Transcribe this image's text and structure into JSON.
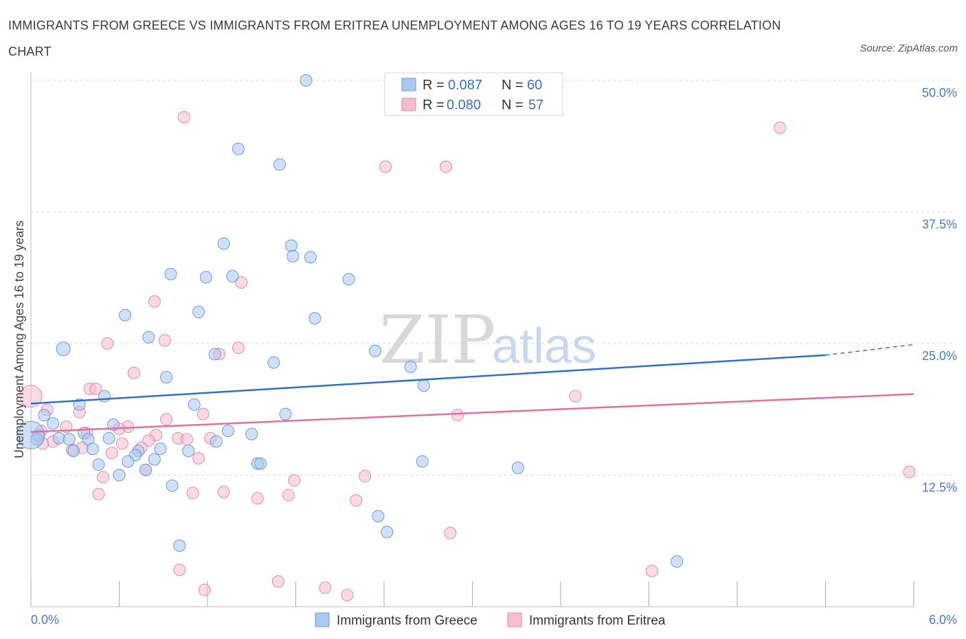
{
  "title": "IMMIGRANTS FROM GREECE VS IMMIGRANTS FROM ERITREA UNEMPLOYMENT AMONG AGES 16 TO 19 YEARS CORRELATION CHART",
  "source": "Source: ZipAtlas.com",
  "watermark": {
    "zip": "ZIP",
    "atlas": "atlas"
  },
  "legend_top": {
    "rows": [
      {
        "r_label": "R =",
        "r_value": "0.087",
        "n_label": "N =",
        "n_value": "60"
      },
      {
        "r_label": "R =",
        "r_value": "0.080",
        "n_label": "N =",
        "n_value": "57"
      }
    ]
  },
  "colors": {
    "greece_fill": "#aac8f0",
    "greece_stroke": "#6a9ad8",
    "greece_line": "#2f6fc8",
    "eritrea_fill": "#f6bcd0",
    "eritrea_stroke": "#e58aa8",
    "eritrea_line": "#e0709a",
    "tick_text": "#4a78c2",
    "grid": "#dddddd"
  },
  "chart_data": {
    "type": "scatter",
    "title": "IMMIGRANTS FROM GREECE VS IMMIGRANTS FROM ERITREA UNEMPLOYMENT AMONG AGES 16 TO 19 YEARS CORRELATION CHART",
    "xlabel": "",
    "ylabel": "Unemployment Among Ages 16 to 19 years",
    "xlim": [
      0,
      6
    ],
    "ylim": [
      0,
      50
    ],
    "x_tick_labels": [
      "0.0%",
      "6.0%"
    ],
    "y_tick_labels": [
      "12.5%",
      "25.0%",
      "37.5%",
      "50.0%"
    ],
    "y_ticks": [
      12.5,
      25.0,
      37.5,
      50.0
    ],
    "grid": true,
    "legend_position": "top-center",
    "series": [
      {
        "name": "Immigrants from Greece",
        "r": 0.087,
        "n": 60,
        "trend": {
          "x0": 0,
          "y0": 19.3,
          "x1": 5.4,
          "y1": 23.9,
          "dashed_to_x": 6,
          "dashed_to_y": 24.9
        },
        "points": [
          {
            "x": 1.87,
            "y": 50.0
          },
          {
            "x": 1.41,
            "y": 43.5
          },
          {
            "x": 1.69,
            "y": 42.0
          },
          {
            "x": 1.31,
            "y": 34.5
          },
          {
            "x": 1.77,
            "y": 34.3
          },
          {
            "x": 1.78,
            "y": 33.3
          },
          {
            "x": 1.9,
            "y": 33.2
          },
          {
            "x": 0.95,
            "y": 31.6
          },
          {
            "x": 1.19,
            "y": 31.3
          },
          {
            "x": 1.37,
            "y": 31.4
          },
          {
            "x": 2.16,
            "y": 31.1
          },
          {
            "x": 0.64,
            "y": 27.7
          },
          {
            "x": 1.14,
            "y": 28.0
          },
          {
            "x": 1.93,
            "y": 27.4
          },
          {
            "x": 0.8,
            "y": 25.6
          },
          {
            "x": 0.22,
            "y": 24.5
          },
          {
            "x": 1.25,
            "y": 24.0
          },
          {
            "x": 2.34,
            "y": 24.3
          },
          {
            "x": 1.65,
            "y": 23.2
          },
          {
            "x": 2.58,
            "y": 22.8
          },
          {
            "x": 0.92,
            "y": 21.8
          },
          {
            "x": 2.67,
            "y": 21.0
          },
          {
            "x": 0.5,
            "y": 20.0
          },
          {
            "x": 0.33,
            "y": 19.2
          },
          {
            "x": 1.11,
            "y": 19.2
          },
          {
            "x": 0.09,
            "y": 18.2
          },
          {
            "x": 1.73,
            "y": 18.3
          },
          {
            "x": 0.15,
            "y": 17.4
          },
          {
            "x": 0.56,
            "y": 17.3
          },
          {
            "x": 1.34,
            "y": 16.7
          },
          {
            "x": 0.36,
            "y": 16.5
          },
          {
            "x": 1.5,
            "y": 16.4
          },
          {
            "x": 0.05,
            "y": 16.3
          },
          {
            "x": 0.19,
            "y": 16.0
          },
          {
            "x": 0.53,
            "y": 16.0
          },
          {
            "x": 0.26,
            "y": 15.9
          },
          {
            "x": 1.26,
            "y": 15.7
          },
          {
            "x": 0.39,
            "y": 15.9
          },
          {
            "x": 0.04,
            "y": 15.9
          },
          {
            "x": 0.88,
            "y": 15.0
          },
          {
            "x": 0.42,
            "y": 15.0
          },
          {
            "x": 0.73,
            "y": 14.8
          },
          {
            "x": 1.07,
            "y": 14.8
          },
          {
            "x": 0.29,
            "y": 14.8
          },
          {
            "x": 0.71,
            "y": 14.4
          },
          {
            "x": 0.84,
            "y": 14.0
          },
          {
            "x": 0.66,
            "y": 13.8
          },
          {
            "x": 0.46,
            "y": 13.5
          },
          {
            "x": 1.54,
            "y": 13.6
          },
          {
            "x": 1.56,
            "y": 13.6
          },
          {
            "x": 2.66,
            "y": 13.8
          },
          {
            "x": 0.78,
            "y": 13.0
          },
          {
            "x": 0.6,
            "y": 12.5
          },
          {
            "x": 3.31,
            "y": 13.2
          },
          {
            "x": 0.96,
            "y": 11.5
          },
          {
            "x": 2.36,
            "y": 8.6
          },
          {
            "x": 2.42,
            "y": 7.1
          },
          {
            "x": 1.01,
            "y": 5.8
          },
          {
            "x": 4.39,
            "y": 4.3
          },
          {
            "x": 0.0,
            "y": 16.3
          }
        ]
      },
      {
        "name": "Immigrants from Eritrea",
        "r": 0.08,
        "n": 57,
        "trend": {
          "x0": 0,
          "y0": 16.6,
          "x1": 6,
          "y1": 20.2
        },
        "points": [
          {
            "x": 1.04,
            "y": 46.5
          },
          {
            "x": 5.09,
            "y": 45.5
          },
          {
            "x": 2.41,
            "y": 41.8
          },
          {
            "x": 2.82,
            "y": 41.8
          },
          {
            "x": 1.43,
            "y": 30.8
          },
          {
            "x": 0.84,
            "y": 29.0
          },
          {
            "x": 0.52,
            "y": 25.0
          },
          {
            "x": 0.91,
            "y": 25.3
          },
          {
            "x": 1.41,
            "y": 24.6
          },
          {
            "x": 1.28,
            "y": 24.0
          },
          {
            "x": 0.7,
            "y": 22.2
          },
          {
            "x": 0.4,
            "y": 20.7
          },
          {
            "x": 0.44,
            "y": 20.7
          },
          {
            "x": 0.0,
            "y": 20.0
          },
          {
            "x": 3.7,
            "y": 20.0
          },
          {
            "x": 0.33,
            "y": 18.5
          },
          {
            "x": 1.17,
            "y": 18.3
          },
          {
            "x": 2.9,
            "y": 18.2
          },
          {
            "x": 0.11,
            "y": 18.7
          },
          {
            "x": 0.92,
            "y": 17.8
          },
          {
            "x": 0.24,
            "y": 17.1
          },
          {
            "x": 0.66,
            "y": 17.1
          },
          {
            "x": 0.6,
            "y": 16.9
          },
          {
            "x": 0.07,
            "y": 16.7
          },
          {
            "x": 0.38,
            "y": 16.5
          },
          {
            "x": 0.85,
            "y": 16.3
          },
          {
            "x": 1.0,
            "y": 16.0
          },
          {
            "x": 1.22,
            "y": 16.0
          },
          {
            "x": 1.06,
            "y": 15.9
          },
          {
            "x": 0.8,
            "y": 15.8
          },
          {
            "x": 0.15,
            "y": 15.7
          },
          {
            "x": 0.62,
            "y": 15.5
          },
          {
            "x": 0.08,
            "y": 15.5
          },
          {
            "x": 0.35,
            "y": 15.1
          },
          {
            "x": 0.75,
            "y": 15.1
          },
          {
            "x": 0.55,
            "y": 14.6
          },
          {
            "x": 0.28,
            "y": 14.9
          },
          {
            "x": 1.14,
            "y": 14.1
          },
          {
            "x": 0.78,
            "y": 13.0
          },
          {
            "x": 0.49,
            "y": 12.3
          },
          {
            "x": 1.79,
            "y": 12.0
          },
          {
            "x": 2.27,
            "y": 12.4
          },
          {
            "x": 5.97,
            "y": 12.8
          },
          {
            "x": 0.46,
            "y": 10.7
          },
          {
            "x": 1.1,
            "y": 10.8
          },
          {
            "x": 1.31,
            "y": 10.9
          },
          {
            "x": 1.54,
            "y": 10.3
          },
          {
            "x": 1.75,
            "y": 10.6
          },
          {
            "x": 2.21,
            "y": 10.1
          },
          {
            "x": 2.85,
            "y": 7.0
          },
          {
            "x": 1.01,
            "y": 3.5
          },
          {
            "x": 4.22,
            "y": 3.4
          },
          {
            "x": 1.68,
            "y": 2.4
          },
          {
            "x": 1.18,
            "y": 1.6
          },
          {
            "x": 2.0,
            "y": 1.8
          },
          {
            "x": 2.15,
            "y": 1.1
          },
          {
            "x": 0.05,
            "y": 16.2
          }
        ]
      }
    ]
  },
  "bottom_legend": [
    "Immigrants from Greece",
    "Immigrants from Eritrea"
  ]
}
